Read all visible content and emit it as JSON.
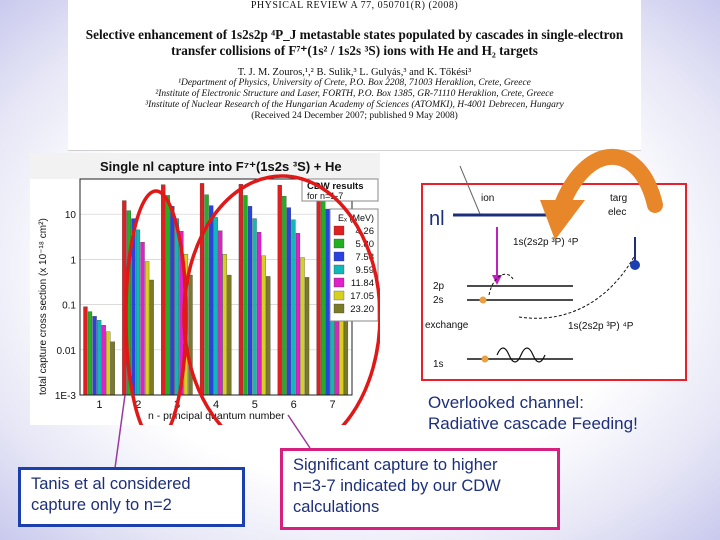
{
  "paper": {
    "journal": "PHYSICAL REVIEW A 77, 050701(R) (2008)",
    "title_line1": "Selective enhancement of 1s2s2p ⁴P_J metastable states populated by cascades in single-electron",
    "title_line2": "transfer collisions of F⁷⁺(1s² / 1s2s ³S) ions with He and H₂ targets",
    "authors": "T. J. M. Zouros,¹,² B. Sulik,³ L. Gulyás,³ and K. Tőkési³",
    "affiliations": [
      "¹Department of Physics, University of Crete, P.O. Box 2208, 71003 Heraklion, Crete, Greece",
      "²Institute of Electronic Structure and Laser, FORTH, P.O. Box 1385, GR-71110 Heraklion, Crete, Greece",
      "³Institute of Nuclear Research of the Hungarian Academy of Sciences (ATOMKI), H-4001 Debrecen, Hungary"
    ],
    "received": "(Received 24 December 2007; published 9 May 2008)"
  },
  "chart_data": {
    "type": "bar",
    "title": "Single nl capture into F⁷⁺(1s2s ³S) + He",
    "xlabel": "n - principal quantum number",
    "ylabel": "total capture cross section (x 10⁻¹⁸ cm²)",
    "y_scale": "log",
    "ylim": [
      0.001,
      60
    ],
    "y_ticks": [
      "1E-3",
      "0.01",
      "0.1",
      "1",
      "10"
    ],
    "categories": [
      "1",
      "2",
      "3",
      "4",
      "5",
      "6",
      "7"
    ],
    "legend_title": "CDW results",
    "legend_subtitle": "for n=1-7",
    "legend_header": "Eₓ (MeV)",
    "legend_position": "top-right",
    "series": [
      {
        "name": "4.26",
        "color": "#e02020",
        "values": [
          0.09,
          20,
          45,
          48,
          46,
          44,
          40
        ]
      },
      {
        "name": "5.80",
        "color": "#22b022",
        "values": [
          0.07,
          12,
          26,
          27,
          26,
          25,
          23
        ]
      },
      {
        "name": "7.58",
        "color": "#2a42e0",
        "values": [
          0.055,
          8,
          15,
          15.5,
          15,
          14,
          13
        ]
      },
      {
        "name": "9.59",
        "color": "#10b8b8",
        "values": [
          0.045,
          4.5,
          8,
          8.5,
          8,
          7.5,
          7
        ]
      },
      {
        "name": "11.84",
        "color": "#e020c8",
        "values": [
          0.035,
          2.4,
          4.2,
          4.3,
          4,
          3.8,
          3.4
        ]
      },
      {
        "name": "17.05",
        "color": "#d8d020",
        "values": [
          0.025,
          0.9,
          1.3,
          1.3,
          1.2,
          1.1,
          1
        ]
      },
      {
        "name": "23.20",
        "color": "#7a7a28",
        "values": [
          0.015,
          0.35,
          0.45,
          0.45,
          0.42,
          0.4,
          0.36
        ]
      }
    ]
  },
  "diagram": {
    "nl_label": "nl",
    "ion_label": "ion",
    "target_label": "targ",
    "electron_label": "elec",
    "state_upper": "1s(2s2p ³P) ⁴P",
    "state_lower": "1s(2s2p ³P) ⁴P",
    "level_2p": "2p",
    "level_2s": "2s",
    "level_1s": "1s",
    "exchange_label": "exchange"
  },
  "captions": {
    "overlooked_line1": "Overlooked channel:",
    "overlooked_line2": "Radiative cascade Feeding!",
    "tanis_line1": "Tanis et al considered",
    "tanis_line2": "capture only to n=2",
    "cdw_line1": "Significant capture to higher",
    "cdw_line2": "n=3-7 indicated by our CDW",
    "cdw_line3": "calculations"
  },
  "colors": {
    "ellipse": "#e01818",
    "caption_text": "#1d2f7a",
    "arrow_orange": "#e8862a",
    "left_box_border": "#1c3fb0",
    "right_box_border": "#d62080"
  }
}
